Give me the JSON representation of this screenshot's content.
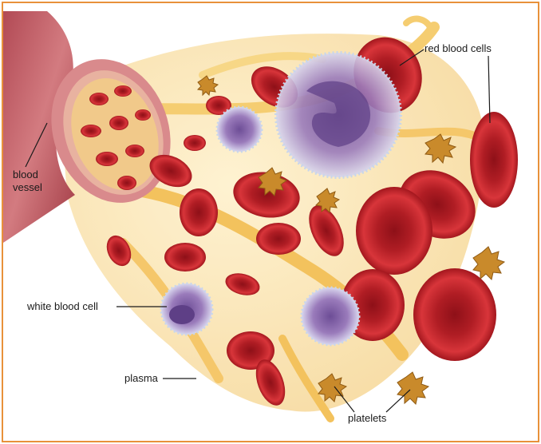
{
  "labels": {
    "red_blood_cells": "red blood cells",
    "blood_vessel_line1": "blood",
    "blood_vessel_line2": "vessel",
    "white_blood_cell": "white blood cell",
    "plasma": "plasma",
    "platelets": "platelets"
  },
  "colors": {
    "frame_border": "#e8913a",
    "red_cell": "#c8262b",
    "plasma": "#f3c25a",
    "vessel": "#c9646a",
    "white_cell": "#8a6aa8"
  }
}
